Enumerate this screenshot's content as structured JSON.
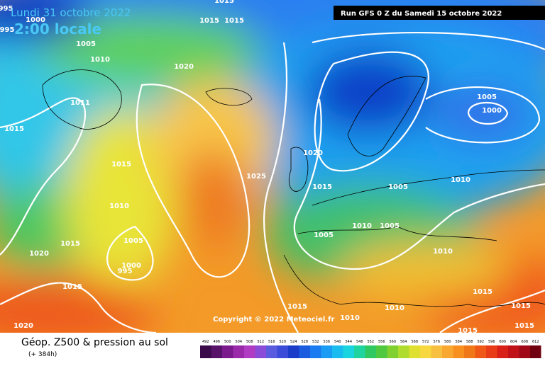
{
  "header": {
    "date": "Lundi 31 octobre 2022",
    "time": "2:00 locale",
    "run": "Run GFS 0 Z du Samedi 15 octobre 2022"
  },
  "footer": {
    "title": "Géop. Z500 & pression au sol",
    "subtitle": "(+ 384h)",
    "copyright": "Copyright © 2022 Meteociel.fr"
  },
  "legend": {
    "labels": [
      "492",
      "496",
      "500",
      "504",
      "508",
      "512",
      "516",
      "520",
      "524",
      "528",
      "532",
      "536",
      "540",
      "544",
      "548",
      "552",
      "556",
      "560",
      "564",
      "568",
      "572",
      "576",
      "580",
      "584",
      "588",
      "592",
      "596",
      "600",
      "604",
      "608",
      "612"
    ]
  },
  "isobars": {
    "labels": [
      "995",
      "995",
      "1000",
      "1005",
      "1010",
      "1020",
      "1015",
      "1015",
      "1015",
      "1011",
      "1015",
      "1015",
      "1010",
      "1005",
      "1000",
      "995",
      "1020",
      "1015",
      "1015",
      "1025",
      "1020",
      "1015",
      "1005",
      "1010",
      "1005",
      "1005",
      "1005",
      "1000",
      "1010",
      "1010",
      "1015",
      "1010",
      "1010",
      "1015",
      "1015",
      "1015",
      "1015",
      "1020"
    ]
  }
}
